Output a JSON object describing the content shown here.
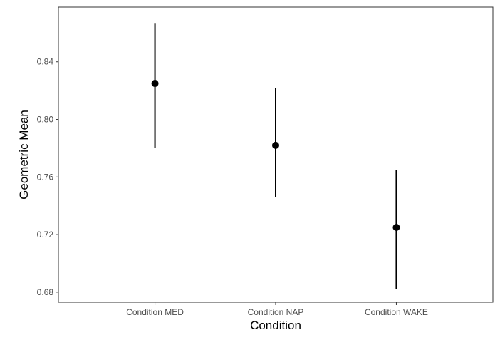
{
  "chart_data": {
    "type": "scatter",
    "subtype": "point-range",
    "xlabel": "Condition",
    "ylabel": "Geometric Mean",
    "categories": [
      "Condition MED",
      "Condition NAP",
      "Condition WAKE"
    ],
    "series": [
      {
        "points": [
          {
            "x": "Condition MED",
            "y": 0.825,
            "lower": 0.78,
            "upper": 0.867
          },
          {
            "x": "Condition NAP",
            "y": 0.782,
            "lower": 0.746,
            "upper": 0.822
          },
          {
            "x": "Condition WAKE",
            "y": 0.725,
            "lower": 0.682,
            "upper": 0.765
          }
        ]
      }
    ],
    "ylim": [
      0.673,
      0.878
    ],
    "yticks": [
      0.68,
      0.72,
      0.76,
      0.8,
      0.84
    ],
    "ytick_labels": [
      "0.68",
      "0.72",
      "0.76",
      "0.80",
      "0.84"
    ],
    "grid": false,
    "legend": "none",
    "colors": {
      "point": "#000000",
      "errorbar": "#000000",
      "panel_border": "#333333",
      "tick_text": "#4d4d4d"
    }
  }
}
